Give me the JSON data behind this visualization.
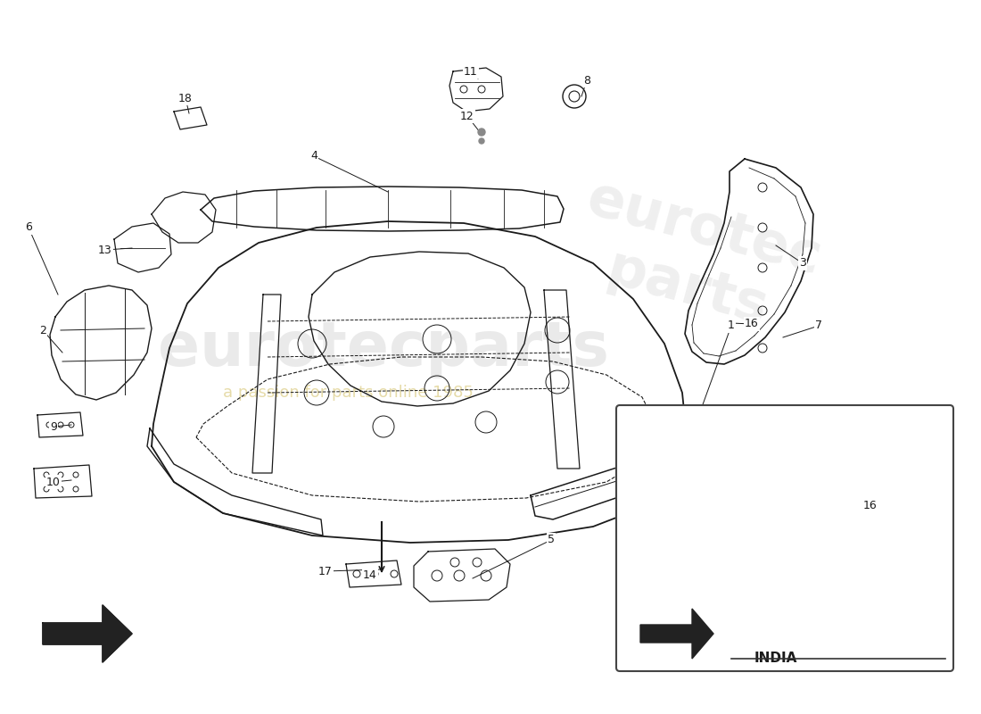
{
  "background_color": "#ffffff",
  "line_color": "#1a1a1a",
  "india_label": "INDIA",
  "figsize": [
    11.0,
    8.0
  ],
  "dpi": 100,
  "watermark1": "eurotecparts",
  "watermark2": "a passion for parts online 1985",
  "leaders": [
    [
      "1",
      820,
      365,
      762,
      525
    ],
    [
      "2",
      48,
      370,
      70,
      395
    ],
    [
      "3",
      900,
      295,
      870,
      275
    ],
    [
      "4",
      352,
      175,
      435,
      215
    ],
    [
      "5",
      618,
      605,
      530,
      648
    ],
    [
      "6",
      32,
      255,
      65,
      330
    ],
    [
      "7",
      918,
      365,
      878,
      378
    ],
    [
      "8",
      658,
      90,
      652,
      108
    ],
    [
      "9",
      60,
      478,
      80,
      476
    ],
    [
      "10",
      60,
      540,
      80,
      538
    ],
    [
      "11",
      528,
      80,
      536,
      88
    ],
    [
      "12",
      524,
      130,
      538,
      148
    ],
    [
      "13",
      118,
      280,
      148,
      278
    ],
    [
      "14",
      415,
      645,
      418,
      643
    ],
    [
      "16",
      843,
      363,
      820,
      362
    ],
    [
      "17",
      365,
      640,
      428,
      638
    ],
    [
      "18",
      208,
      110,
      212,
      127
    ]
  ]
}
